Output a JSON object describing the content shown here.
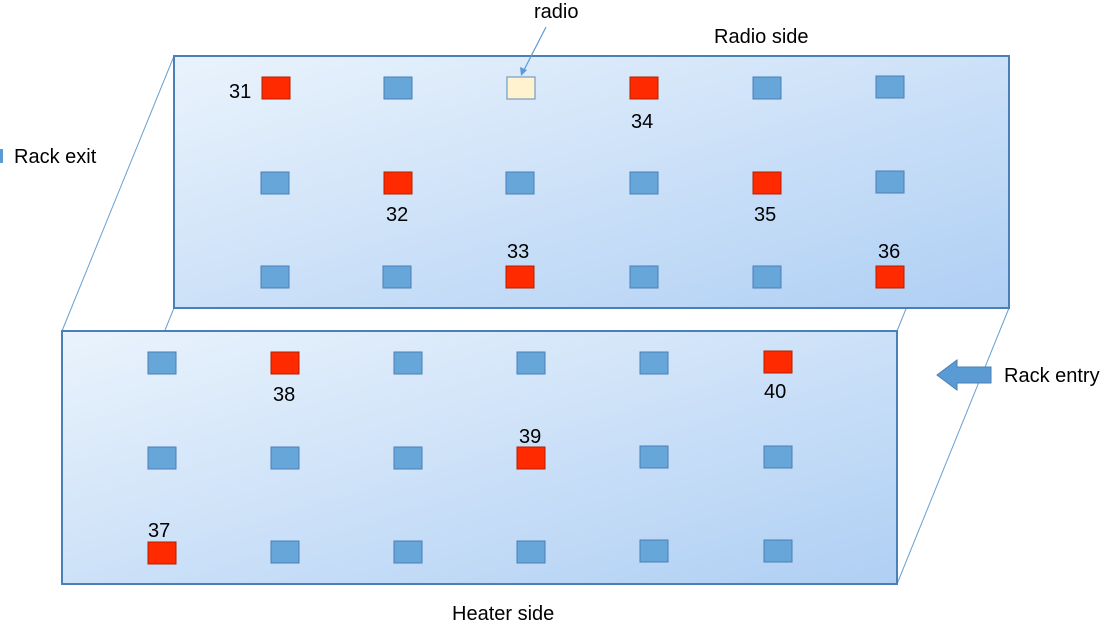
{
  "labels": {
    "radio_side": "Radio side",
    "heater_side": "Heater side",
    "rack_exit": "Rack exit",
    "rack_entry": "Rack entry",
    "radio": "radio"
  },
  "colors": {
    "panel_fill_light": "#e8f1fb",
    "panel_fill_dark": "#b3d2f5",
    "panel_stroke": "#4a7fb8",
    "sensor_normal": "#66a6d8",
    "sensor_highlight": "#ff2a00",
    "radio_fill": "#fff3cf",
    "radio_stroke": "#5b8cc0",
    "arrow": "#5b9bd5"
  },
  "sensor_numbers": {
    "s31": "31",
    "s32": "32",
    "s33": "33",
    "s34": "34",
    "s35": "35",
    "s36": "36",
    "s37": "37",
    "s38": "38",
    "s39": "39",
    "s40": "40"
  }
}
